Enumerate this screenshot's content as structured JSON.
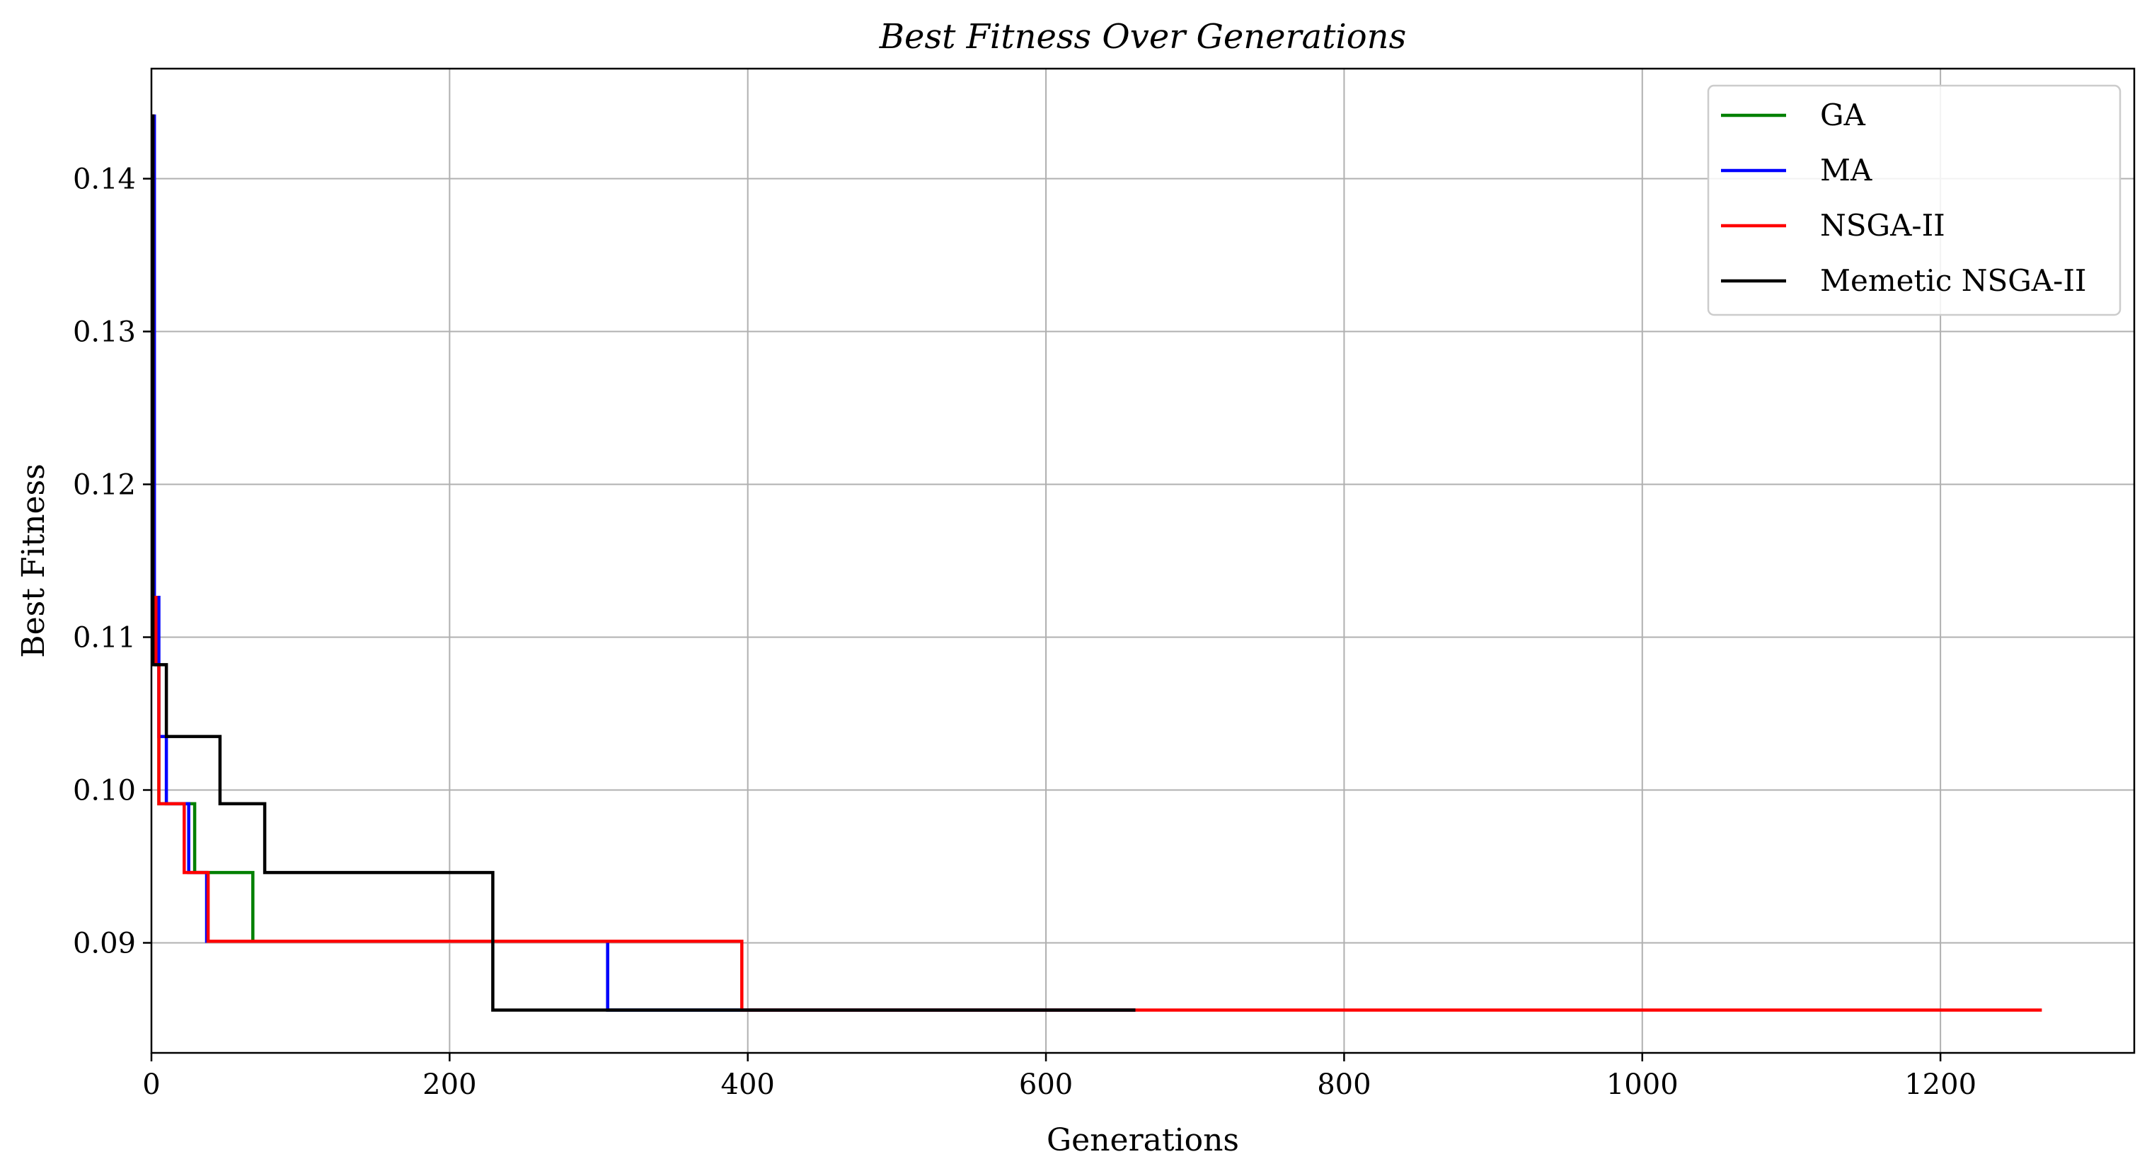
{
  "chart_data": {
    "type": "line",
    "title": "Best Fitness Over Generations",
    "xlabel": "Generations",
    "ylabel": "Best Fitness",
    "xlim": [
      0,
      1330
    ],
    "ylim": [
      0.0828,
      0.1472
    ],
    "xticks": [
      0,
      200,
      400,
      600,
      800,
      1000,
      1200
    ],
    "xtick_labels": [
      "0",
      "200",
      "400",
      "600",
      "800",
      "1000",
      "1200"
    ],
    "yticks": [
      0.09,
      0.1,
      0.11,
      0.12,
      0.13,
      0.14
    ],
    "ytick_labels": [
      "0.09",
      "0.10",
      "0.11",
      "0.12",
      "0.13",
      "0.14"
    ],
    "grid": true,
    "legend_position": "top-right",
    "step": true,
    "series": [
      {
        "name": "GA",
        "color": "#008000",
        "points": [
          [
            0,
            0.1441
          ],
          [
            1,
            0.1126
          ],
          [
            3,
            0.1082
          ],
          [
            5,
            0.0991
          ],
          [
            29,
            0.0946
          ],
          [
            68,
            0.0901
          ],
          [
            306,
            0.0856
          ],
          [
            660,
            0.0856
          ]
        ]
      },
      {
        "name": "MA",
        "color": "#0000ff",
        "points": [
          [
            0,
            0.1441
          ],
          [
            2,
            0.1126
          ],
          [
            5,
            0.1035
          ],
          [
            10,
            0.0991
          ],
          [
            25,
            0.0946
          ],
          [
            37,
            0.0901
          ],
          [
            306,
            0.0856
          ],
          [
            660,
            0.0856
          ]
        ]
      },
      {
        "name": "NSGA-II",
        "color": "#ff0000",
        "points": [
          [
            0,
            0.1441
          ],
          [
            1,
            0.1126
          ],
          [
            3,
            0.1082
          ],
          [
            5,
            0.0991
          ],
          [
            22,
            0.0946
          ],
          [
            38,
            0.0901
          ],
          [
            396,
            0.0856
          ],
          [
            1268,
            0.0856
          ]
        ]
      },
      {
        "name": "Memetic NSGA-II",
        "color": "#000000",
        "points": [
          [
            0,
            0.1441
          ],
          [
            1,
            0.1082
          ],
          [
            10,
            0.1035
          ],
          [
            46,
            0.0991
          ],
          [
            76,
            0.0946
          ],
          [
            229,
            0.0856
          ],
          [
            660,
            0.0856
          ]
        ]
      }
    ]
  }
}
